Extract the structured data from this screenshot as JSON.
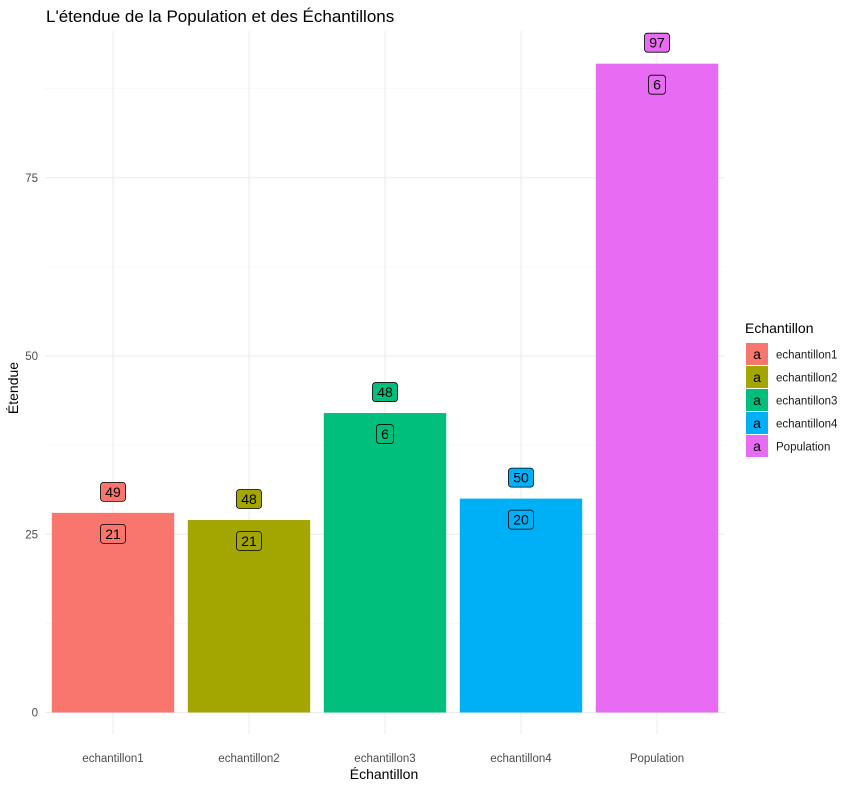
{
  "chart_data": {
    "type": "bar",
    "title": "L'étendue de la Population et des Échantillons",
    "xlabel": "Échantillon",
    "ylabel": "Étendue",
    "categories": [
      "echantillon1",
      "echantillon2",
      "echantillon3",
      "echantillon4",
      "Population"
    ],
    "values": [
      28,
      27,
      42,
      30,
      91
    ],
    "max_labels": [
      "49",
      "48",
      "48",
      "50",
      "97"
    ],
    "min_labels": [
      "21",
      "21",
      "6",
      "20",
      "6"
    ],
    "colors": [
      "#F8766D",
      "#A3A500",
      "#00BF7D",
      "#00B0F6",
      "#E76BF3"
    ],
    "yticks": [
      0,
      25,
      50,
      75
    ],
    "ylim": [
      0,
      95.5
    ],
    "grid": true,
    "legend": {
      "title": "Echantillon",
      "position": "right",
      "key_glyph": "a",
      "entries": [
        "echantillon1",
        "echantillon2",
        "echantillon3",
        "echantillon4",
        "Population"
      ]
    }
  }
}
